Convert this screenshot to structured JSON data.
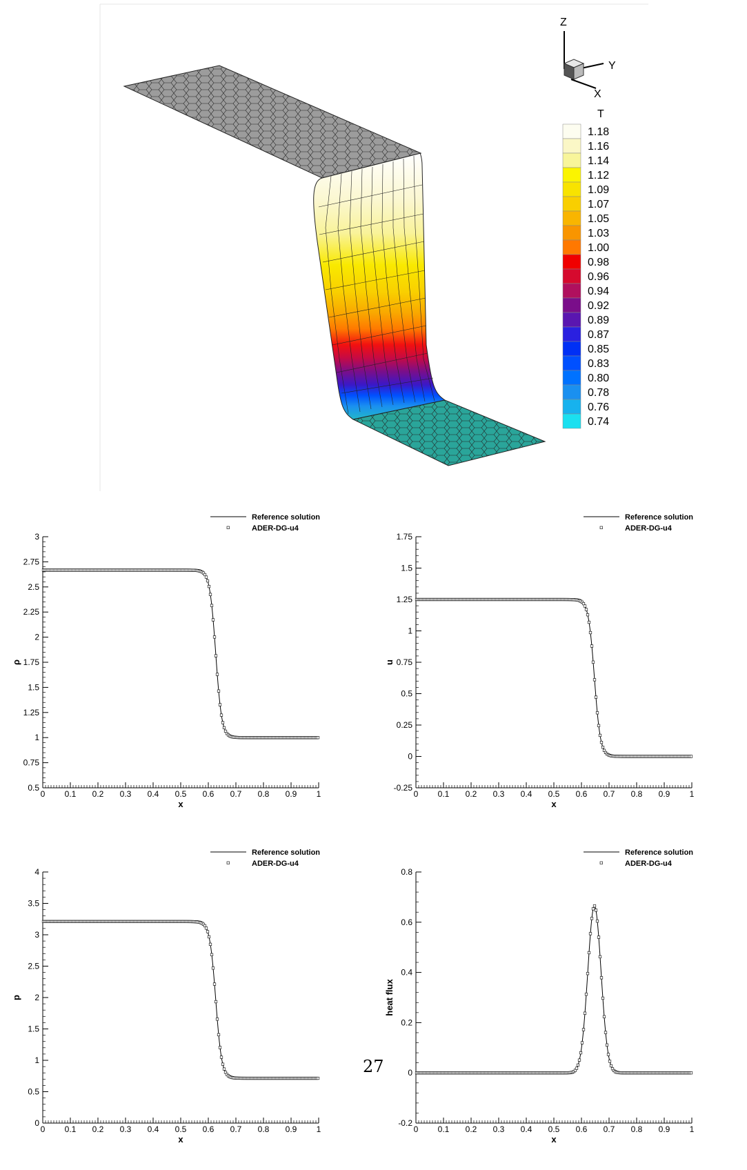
{
  "page_number": "27",
  "colormap": {
    "title": "T",
    "axis_labels": {
      "z": "Z",
      "y": "Y",
      "x": "X"
    },
    "levels": [
      "1.18",
      "1.16",
      "1.14",
      "1.12",
      "1.09",
      "1.07",
      "1.05",
      "1.03",
      "1.00",
      "0.98",
      "0.96",
      "0.94",
      "0.92",
      "0.89",
      "0.87",
      "0.85",
      "0.83",
      "0.80",
      "0.78",
      "0.76",
      "0.74"
    ],
    "colors": [
      "#fdfdf0",
      "#fbf7c6",
      "#f8f59a",
      "#fbf400",
      "#f8e300",
      "#f9cf00",
      "#f9b500",
      "#f99500",
      "#ff7800",
      "#f00000",
      "#d60a2e",
      "#b0105e",
      "#7a0e8a",
      "#5a16b0",
      "#2a20e0",
      "#0030f5",
      "#0050ff",
      "#0072ff",
      "#1a90f0",
      "#17b2ee",
      "#1ae0f0"
    ]
  },
  "chart_data": [
    {
      "type": "line",
      "xlabel": "x",
      "ylabel": "ρ",
      "xlim": [
        0,
        1
      ],
      "ylim": [
        0.5,
        3
      ],
      "xticks": [
        "0",
        "0.1",
        "0.2",
        "0.3",
        "0.4",
        "0.5",
        "0.6",
        "0.7",
        "0.8",
        "0.9",
        "1"
      ],
      "yticks": [
        "0.5",
        "0.75",
        "1",
        "1.25",
        "1.5",
        "1.75",
        "2",
        "2.25",
        "2.5",
        "2.75",
        "3"
      ],
      "legend": [
        "Reference solution",
        "ADER-DG-u4"
      ],
      "profile": {
        "kind": "step",
        "left": 2.667,
        "right": 1.0,
        "center": 0.627,
        "width": 0.022
      }
    },
    {
      "type": "line",
      "xlabel": "x",
      "ylabel": "u",
      "xlim": [
        0,
        1
      ],
      "ylim": [
        -0.25,
        1.75
      ],
      "xticks": [
        "0",
        "0.1",
        "0.2",
        "0.3",
        "0.4",
        "0.5",
        "0.6",
        "0.7",
        "0.8",
        "0.9",
        "1"
      ],
      "yticks": [
        "-0.25",
        "0",
        "0.25",
        "0.5",
        "0.75",
        "1",
        "1.25",
        "1.5",
        "1.75"
      ],
      "legend": [
        "Reference solution",
        "ADER-DG-u4"
      ],
      "profile": {
        "kind": "step",
        "left": 1.25,
        "right": 0.0,
        "center": 0.647,
        "width": 0.022
      }
    },
    {
      "type": "line",
      "xlabel": "x",
      "ylabel": "p",
      "xlim": [
        0,
        1
      ],
      "ylim": [
        0,
        4
      ],
      "xticks": [
        "0",
        "0.1",
        "0.2",
        "0.3",
        "0.4",
        "0.5",
        "0.6",
        "0.7",
        "0.8",
        "0.9",
        "1"
      ],
      "yticks": [
        "0",
        "0.5",
        "1",
        "1.5",
        "2",
        "2.5",
        "3",
        "3.5",
        "4"
      ],
      "legend": [
        "Reference solution",
        "ADER-DG-u4"
      ],
      "profile": {
        "kind": "step",
        "left": 3.21,
        "right": 0.714,
        "center": 0.627,
        "width": 0.022
      }
    },
    {
      "type": "line",
      "xlabel": "x",
      "ylabel": "heat flux",
      "xlim": [
        0,
        1
      ],
      "ylim": [
        -0.2,
        0.8
      ],
      "xticks": [
        "0",
        "0.1",
        "0.2",
        "0.3",
        "0.4",
        "0.5",
        "0.6",
        "0.7",
        "0.8",
        "0.9",
        "1"
      ],
      "yticks": [
        "-0.2",
        "0",
        "0.2",
        "0.4",
        "0.6",
        "0.8"
      ],
      "legend": [
        "Reference solution",
        "ADER-DG-u4"
      ],
      "profile": {
        "kind": "peak",
        "left": 0.0,
        "right": 0.0,
        "peak": 0.665,
        "center": 0.647,
        "width": 0.034
      }
    }
  ]
}
